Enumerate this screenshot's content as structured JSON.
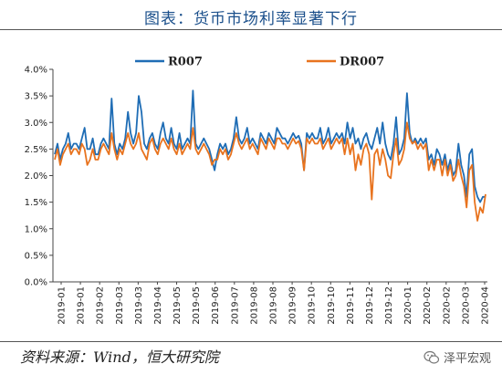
{
  "title": "图表：货币市场利率显著下行",
  "source": "资料来源：Wind，恒大研究院",
  "watermark": "泽平宏观",
  "chart_data": {
    "type": "line",
    "title": "图表：货币市场利率显著下行",
    "xlabel": "",
    "ylabel": "",
    "ylim": [
      0,
      4.0
    ],
    "yticks": [
      "0.0%",
      "0.5%",
      "1.0%",
      "1.5%",
      "2.0%",
      "2.5%",
      "3.0%",
      "3.5%",
      "4.0%"
    ],
    "ytick_values": [
      0,
      0.5,
      1.0,
      1.5,
      2.0,
      2.5,
      3.0,
      3.5,
      4.0
    ],
    "x_tick_labels": [
      "2019-01",
      "2019-01",
      "2019-02",
      "2019-03",
      "2019-03",
      "2019-04",
      "2019-05",
      "2019-05",
      "2019-06",
      "2019-07",
      "2019-08",
      "2019-08",
      "2019-09",
      "2019-10",
      "2019-10",
      "2019-11",
      "2019-12",
      "2019-12",
      "2020-01",
      "2020-02",
      "2020-02",
      "2020-03",
      "2020-04"
    ],
    "legend_position": "top",
    "grid": false,
    "series": [
      {
        "name": "R007",
        "color": "#1f6db5",
        "values": [
          2.4,
          2.6,
          2.3,
          2.5,
          2.6,
          2.8,
          2.5,
          2.6,
          2.6,
          2.5,
          2.7,
          2.9,
          2.5,
          2.5,
          2.7,
          2.4,
          2.4,
          2.6,
          2.7,
          2.6,
          2.5,
          3.45,
          2.6,
          2.4,
          2.6,
          2.5,
          2.7,
          3.2,
          2.8,
          2.6,
          2.8,
          3.5,
          3.2,
          2.6,
          2.5,
          2.7,
          2.8,
          2.6,
          2.5,
          2.8,
          3.0,
          2.7,
          2.6,
          2.9,
          2.6,
          2.5,
          2.8,
          2.5,
          2.6,
          2.7,
          2.6,
          3.6,
          2.6,
          2.5,
          2.6,
          2.7,
          2.6,
          2.5,
          2.3,
          2.1,
          2.4,
          2.6,
          2.5,
          2.6,
          2.4,
          2.5,
          2.7,
          3.1,
          2.7,
          2.6,
          2.7,
          2.9,
          2.6,
          2.7,
          2.6,
          2.5,
          2.8,
          2.7,
          2.6,
          2.8,
          2.7,
          2.6,
          2.9,
          2.8,
          2.7,
          2.7,
          2.6,
          2.7,
          2.8,
          2.7,
          2.75,
          2.6,
          2.1,
          2.8,
          2.7,
          2.8,
          2.7,
          2.7,
          2.9,
          2.6,
          2.7,
          2.9,
          2.6,
          2.7,
          2.8,
          2.7,
          2.8,
          2.6,
          3.0,
          2.7,
          2.9,
          2.6,
          2.7,
          2.5,
          2.7,
          2.8,
          2.6,
          2.5,
          2.7,
          2.9,
          2.6,
          3.0,
          2.6,
          2.4,
          2.3,
          2.6,
          3.1,
          2.4,
          2.5,
          2.7,
          3.55,
          2.8,
          2.6,
          2.7,
          2.6,
          2.7,
          2.6,
          2.7,
          2.3,
          2.4,
          2.2,
          2.5,
          2.4,
          2.2,
          2.4,
          2.1,
          2.3,
          2.0,
          2.1,
          2.6,
          2.2,
          2.0,
          1.6,
          2.4,
          2.5,
          1.8,
          1.6,
          1.5,
          1.6,
          1.6
        ]
      },
      {
        "name": "DR007",
        "color": "#e8731e",
        "values": [
          2.3,
          2.5,
          2.2,
          2.4,
          2.5,
          2.6,
          2.4,
          2.5,
          2.5,
          2.4,
          2.6,
          2.5,
          2.2,
          2.3,
          2.5,
          2.3,
          2.3,
          2.5,
          2.6,
          2.5,
          2.4,
          2.8,
          2.5,
          2.3,
          2.5,
          2.4,
          2.6,
          2.8,
          2.6,
          2.5,
          2.6,
          2.8,
          2.5,
          2.4,
          2.3,
          2.6,
          2.7,
          2.5,
          2.4,
          2.6,
          2.7,
          2.6,
          2.5,
          2.7,
          2.5,
          2.4,
          2.6,
          2.4,
          2.5,
          2.6,
          2.5,
          2.9,
          2.5,
          2.4,
          2.5,
          2.6,
          2.5,
          2.4,
          2.2,
          2.3,
          2.3,
          2.5,
          2.4,
          2.5,
          2.3,
          2.4,
          2.6,
          2.8,
          2.6,
          2.5,
          2.6,
          2.7,
          2.5,
          2.6,
          2.5,
          2.4,
          2.7,
          2.6,
          2.5,
          2.7,
          2.6,
          2.5,
          2.7,
          2.7,
          2.6,
          2.6,
          2.5,
          2.6,
          2.7,
          2.6,
          2.65,
          2.5,
          2.1,
          2.7,
          2.6,
          2.7,
          2.6,
          2.6,
          2.7,
          2.5,
          2.6,
          2.7,
          2.5,
          2.6,
          2.7,
          2.6,
          2.7,
          2.4,
          2.7,
          2.4,
          2.6,
          2.1,
          2.4,
          2.2,
          2.5,
          2.6,
          2.4,
          1.55,
          2.4,
          2.5,
          2.2,
          2.5,
          2.3,
          2.0,
          1.95,
          2.4,
          2.7,
          2.2,
          2.3,
          2.5,
          3.0,
          2.7,
          2.6,
          2.65,
          2.5,
          2.6,
          2.5,
          2.6,
          2.1,
          2.3,
          2.1,
          2.3,
          2.3,
          2.0,
          2.3,
          2.0,
          2.2,
          1.9,
          2.0,
          2.3,
          2.0,
          1.8,
          1.4,
          2.1,
          2.2,
          1.5,
          1.15,
          1.4,
          1.3,
          1.65
        ]
      }
    ]
  }
}
